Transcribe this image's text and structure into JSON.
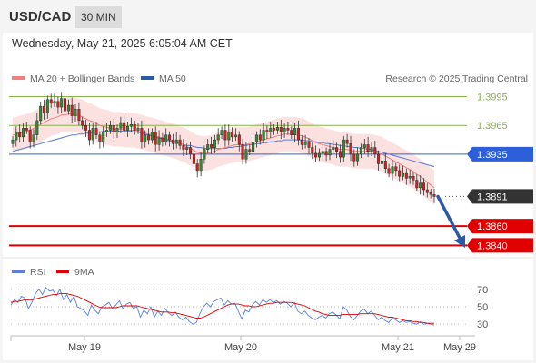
{
  "header": {
    "symbol": "USD/CAD",
    "interval": "30 MIN",
    "datetime": "Wednesday, May 21, 2025 6:05:04 AM CET"
  },
  "legend": {
    "ma20": {
      "label": "MA 20 + Bollinger Bands",
      "color": "#f08080"
    },
    "ma50": {
      "label": "MA 50",
      "color": "#2b5caa"
    },
    "credit": "Research © 2025 Trading Central"
  },
  "colors": {
    "up_candle": "#2e8b2e",
    "down_candle": "#cc2222",
    "bands_fill": "#fcdcdc",
    "ma50": "#5a7ccf",
    "green_level": "#88b34a",
    "blue_level": "#2d5fd9",
    "red_level": "#e00000",
    "arrow": "#2b5aa8",
    "rsi": "#5b7fdb",
    "rsi_ma": "#e00000"
  },
  "chart_data": [
    {
      "type": "line",
      "title": "",
      "subtype": "candlestick",
      "x_tick_labels": [
        "May 19",
        "May 20",
        "May 21",
        "May 29"
      ],
      "ylim": [
        1.3828,
        1.4004
      ],
      "levels": [
        {
          "value": 1.3995,
          "label": "1.3995",
          "kind": "resistance",
          "color": "#88b34a"
        },
        {
          "value": 1.3965,
          "label": "1.3965",
          "kind": "resistance",
          "color": "#88b34a"
        },
        {
          "value": 1.3935,
          "label": "1.3935",
          "kind": "pivot",
          "color": "#2d5fd9"
        },
        {
          "value": 1.3891,
          "label": "1.3891",
          "kind": "last",
          "color": "#333333"
        },
        {
          "value": 1.386,
          "label": "1.3860",
          "kind": "support",
          "color": "#e00000"
        },
        {
          "value": 1.384,
          "label": "1.3840",
          "kind": "support",
          "color": "#e00000"
        }
      ],
      "closes": [
        1.395,
        1.3958,
        1.3953,
        1.3962,
        1.396,
        1.3948,
        1.3955,
        1.397,
        1.3985,
        1.3978,
        1.3992,
        1.3988,
        1.399,
        1.3984,
        1.3993,
        1.398,
        1.3986,
        1.3975,
        1.3982,
        1.397,
        1.3965,
        1.396,
        1.395,
        1.3962,
        1.3955,
        1.3948,
        1.3958,
        1.396,
        1.3965,
        1.3958,
        1.3962,
        1.3968,
        1.396,
        1.3964,
        1.3966,
        1.396,
        1.3962,
        1.3948,
        1.3955,
        1.395,
        1.3958,
        1.3945,
        1.3952,
        1.3948,
        1.3955,
        1.395,
        1.3946,
        1.395,
        1.3944,
        1.394,
        1.3942,
        1.3935,
        1.3925,
        1.3918,
        1.393,
        1.394,
        1.3945,
        1.3942,
        1.395,
        1.3955,
        1.396,
        1.395,
        1.3958,
        1.3953,
        1.3955,
        1.3945,
        1.393,
        1.394,
        1.3938,
        1.3948,
        1.3955,
        1.395,
        1.396,
        1.3958,
        1.3962,
        1.396,
        1.3963,
        1.3958,
        1.3962,
        1.396,
        1.3955,
        1.3962,
        1.395,
        1.3945,
        1.3948,
        1.3942,
        1.3936,
        1.3932,
        1.3936,
        1.3938,
        1.3934,
        1.394,
        1.3942,
        1.3938,
        1.3932,
        1.395,
        1.3946,
        1.3935,
        1.3928,
        1.3935,
        1.3942,
        1.3945,
        1.3938,
        1.3942,
        1.3935,
        1.3925,
        1.3928,
        1.392,
        1.3915,
        1.3922,
        1.3918,
        1.3912,
        1.3915,
        1.391,
        1.3912,
        1.3908,
        1.39,
        1.3905,
        1.3898,
        1.3895,
        1.3893,
        1.3891
      ],
      "ma20": [
        1.3955,
        1.3956,
        1.3957,
        1.3958,
        1.3959,
        1.396,
        1.3962,
        1.3964,
        1.3966,
        1.3968,
        1.397,
        1.3972,
        1.3973,
        1.3974,
        1.3976,
        1.3976,
        1.3977,
        1.3977,
        1.3976,
        1.3975,
        1.3974,
        1.3972,
        1.397,
        1.3969,
        1.3967,
        1.3965,
        1.3964,
        1.3963,
        1.3962,
        1.3961,
        1.3961,
        1.3961,
        1.396,
        1.396,
        1.396,
        1.396,
        1.3959,
        1.3958,
        1.3957,
        1.3956,
        1.3955,
        1.3954,
        1.3953,
        1.3952,
        1.3951,
        1.395,
        1.3949,
        1.3948,
        1.3946,
        1.3945,
        1.3943,
        1.3941,
        1.3939,
        1.3937,
        1.3936,
        1.3936,
        1.3936,
        1.3937,
        1.3938,
        1.394,
        1.3941,
        1.3942,
        1.3943,
        1.3944,
        1.3945,
        1.3945,
        1.3945,
        1.3945,
        1.3946,
        1.3947,
        1.3948,
        1.3949,
        1.395,
        1.3951,
        1.3952,
        1.3953,
        1.3954,
        1.3955,
        1.3956,
        1.3956,
        1.3956,
        1.3956,
        1.3955,
        1.3954,
        1.3953,
        1.3951,
        1.3949,
        1.3947,
        1.3946,
        1.3945,
        1.3944,
        1.3943,
        1.3942,
        1.3941,
        1.394,
        1.394,
        1.394,
        1.3939,
        1.3938,
        1.3938,
        1.3938,
        1.3938,
        1.3938,
        1.3938,
        1.3937,
        1.3936,
        1.3935,
        1.3933,
        1.3931,
        1.3929,
        1.3927,
        1.3925,
        1.3923,
        1.3921,
        1.3919,
        1.3917,
        1.3914,
        1.3912,
        1.3909,
        1.3906,
        1.3903,
        1.39
      ],
      "ma50": [
        1.3938,
        1.3939,
        1.394,
        1.3941,
        1.3942,
        1.3943,
        1.3944,
        1.3945,
        1.3946,
        1.3947,
        1.3948,
        1.3949,
        1.395,
        1.3951,
        1.3952,
        1.3953,
        1.3954,
        1.3955,
        1.3955,
        1.3956,
        1.3956,
        1.3957,
        1.3957,
        1.3958,
        1.3958,
        1.3958,
        1.3959,
        1.3959,
        1.3959,
        1.3959,
        1.3959,
        1.3959,
        1.3959,
        1.3959,
        1.3959,
        1.3958,
        1.3958,
        1.3957,
        1.3956,
        1.3955,
        1.3954,
        1.3953,
        1.3952,
        1.3951,
        1.395,
        1.3949,
        1.3948,
        1.3947,
        1.3946,
        1.3945,
        1.3944,
        1.3944,
        1.3943,
        1.3942,
        1.3942,
        1.3941,
        1.3941,
        1.3941,
        1.3941,
        1.3941,
        1.3941,
        1.3941,
        1.3942,
        1.3942,
        1.3943,
        1.3943,
        1.3944,
        1.3944,
        1.3945,
        1.3945,
        1.3946,
        1.3946,
        1.3947,
        1.3947,
        1.3948,
        1.3948,
        1.3949,
        1.3949,
        1.395,
        1.395,
        1.395,
        1.395,
        1.395,
        1.395,
        1.3949,
        1.3949,
        1.3948,
        1.3948,
        1.3947,
        1.3947,
        1.3946,
        1.3946,
        1.3945,
        1.3945,
        1.3944,
        1.3944,
        1.3943,
        1.3943,
        1.3942,
        1.3942,
        1.3941,
        1.3941,
        1.394,
        1.394,
        1.3939,
        1.3938,
        1.3937,
        1.3936,
        1.3935,
        1.3934,
        1.3933,
        1.3932,
        1.3931,
        1.393,
        1.3929,
        1.3928,
        1.3927,
        1.3926,
        1.3925,
        1.3924,
        1.3923,
        1.3922
      ],
      "band_width": 0.0018
    },
    {
      "type": "line",
      "title": "",
      "series": [
        {
          "name": "RSI",
          "color": "#5b7fdb"
        },
        {
          "name": "9MA",
          "color": "#e00000"
        }
      ],
      "ylim": [
        25,
        75
      ],
      "y_ticks": [
        30,
        50,
        70
      ],
      "rsi": [
        52,
        58,
        55,
        62,
        60,
        48,
        55,
        65,
        70,
        64,
        72,
        68,
        69,
        63,
        70,
        58,
        64,
        55,
        62,
        50,
        48,
        45,
        40,
        52,
        46,
        42,
        50,
        52,
        55,
        48,
        52,
        57,
        48,
        53,
        55,
        48,
        50,
        38,
        46,
        42,
        50,
        38,
        45,
        40,
        48,
        43,
        40,
        44,
        38,
        35,
        38,
        33,
        30,
        32,
        42,
        50,
        54,
        50,
        56,
        58,
        60,
        52,
        57,
        53,
        54,
        45,
        36,
        46,
        44,
        52,
        56,
        52,
        58,
        55,
        58,
        55,
        57,
        53,
        56,
        54,
        50,
        55,
        45,
        42,
        45,
        40,
        37,
        35,
        38,
        40,
        37,
        42,
        44,
        40,
        36,
        50,
        46,
        39,
        35,
        40,
        45,
        47,
        42,
        45,
        40,
        35,
        38,
        34,
        32,
        37,
        35,
        32,
        34,
        32,
        33,
        31,
        30,
        33,
        30,
        31,
        30,
        29
      ],
      "ma9": [
        55,
        56,
        56,
        57,
        58,
        58,
        58,
        59,
        60,
        61,
        62,
        63,
        64,
        64,
        65,
        65,
        65,
        64,
        63,
        62,
        60,
        58,
        56,
        54,
        52,
        50,
        49,
        49,
        49,
        49,
        49,
        50,
        51,
        51,
        51,
        51,
        51,
        50,
        49,
        48,
        47,
        46,
        45,
        44,
        44,
        44,
        43,
        43,
        42,
        41,
        40,
        39,
        38,
        37,
        37,
        38,
        40,
        42,
        44,
        46,
        48,
        50,
        52,
        53,
        53,
        53,
        52,
        51,
        51,
        50,
        50,
        51,
        52,
        53,
        54,
        54,
        55,
        55,
        55,
        55,
        55,
        54,
        53,
        52,
        51,
        49,
        47,
        45,
        44,
        42,
        41,
        40,
        40,
        40,
        40,
        41,
        41,
        41,
        41,
        41,
        42,
        42,
        42,
        42,
        42,
        41,
        40,
        39,
        38,
        38,
        37,
        36,
        35,
        34,
        34,
        33,
        33,
        32,
        32,
        31,
        31,
        31
      ]
    }
  ]
}
